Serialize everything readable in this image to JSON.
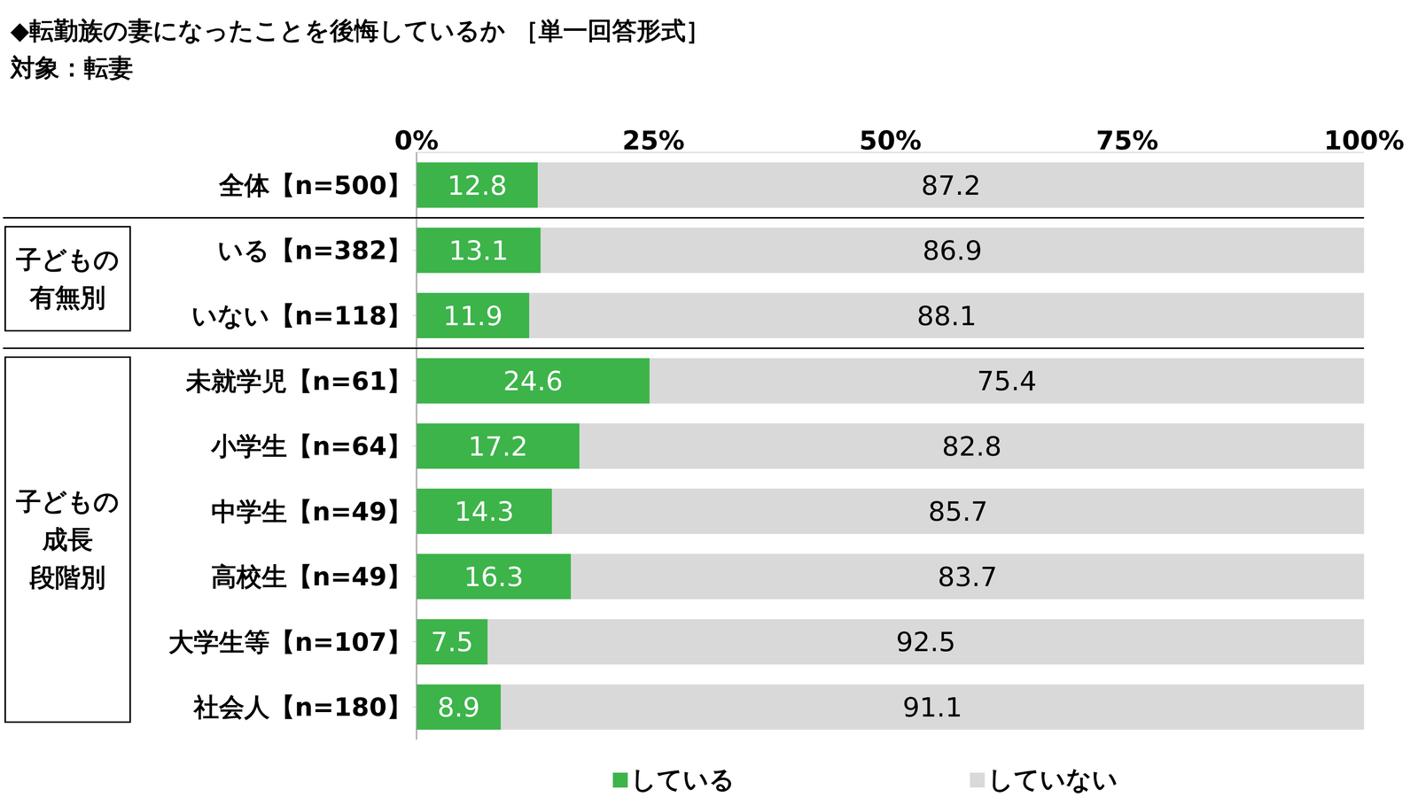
{
  "chart_data": {
    "type": "bar",
    "title": "◆転勤族の妻になったことを後悔しているか ［単一回答形式］",
    "subtitle": "対象：転妻",
    "orientation": "horizontal",
    "stacked": true,
    "data_labels": true,
    "grid": false,
    "categories": [
      "全体【n=500】",
      "いる【n=382】",
      "いない【n=118】",
      "未就学児【n=61】",
      "小学生【n=64】",
      "中学生【n=49】",
      "高校生【n=49】",
      "大学生等【n=107】",
      "社会人【n=180】"
    ],
    "series": [
      {
        "name": "している",
        "color": "#3cb44a",
        "values": [
          12.8,
          13.1,
          11.9,
          24.6,
          17.2,
          14.3,
          16.3,
          7.5,
          8.9
        ]
      },
      {
        "name": "していない",
        "color": "#d9d9d9",
        "values": [
          87.2,
          86.9,
          88.1,
          75.4,
          82.8,
          85.7,
          83.7,
          92.5,
          91.1
        ]
      }
    ],
    "xlim": [
      0,
      100
    ],
    "xticks": [
      {
        "value": 0,
        "label": "0%"
      },
      {
        "value": 25,
        "label": "25%"
      },
      {
        "value": 50,
        "label": "50%"
      },
      {
        "value": 75,
        "label": "75%"
      },
      {
        "value": 100,
        "label": "100%"
      }
    ],
    "groups": [
      {
        "lines": [
          "子どもの",
          "有無別"
        ],
        "first": 1,
        "last": 2
      },
      {
        "lines": [
          "子どもの",
          "成長",
          "段階別"
        ],
        "first": 3,
        "last": 8
      }
    ]
  }
}
